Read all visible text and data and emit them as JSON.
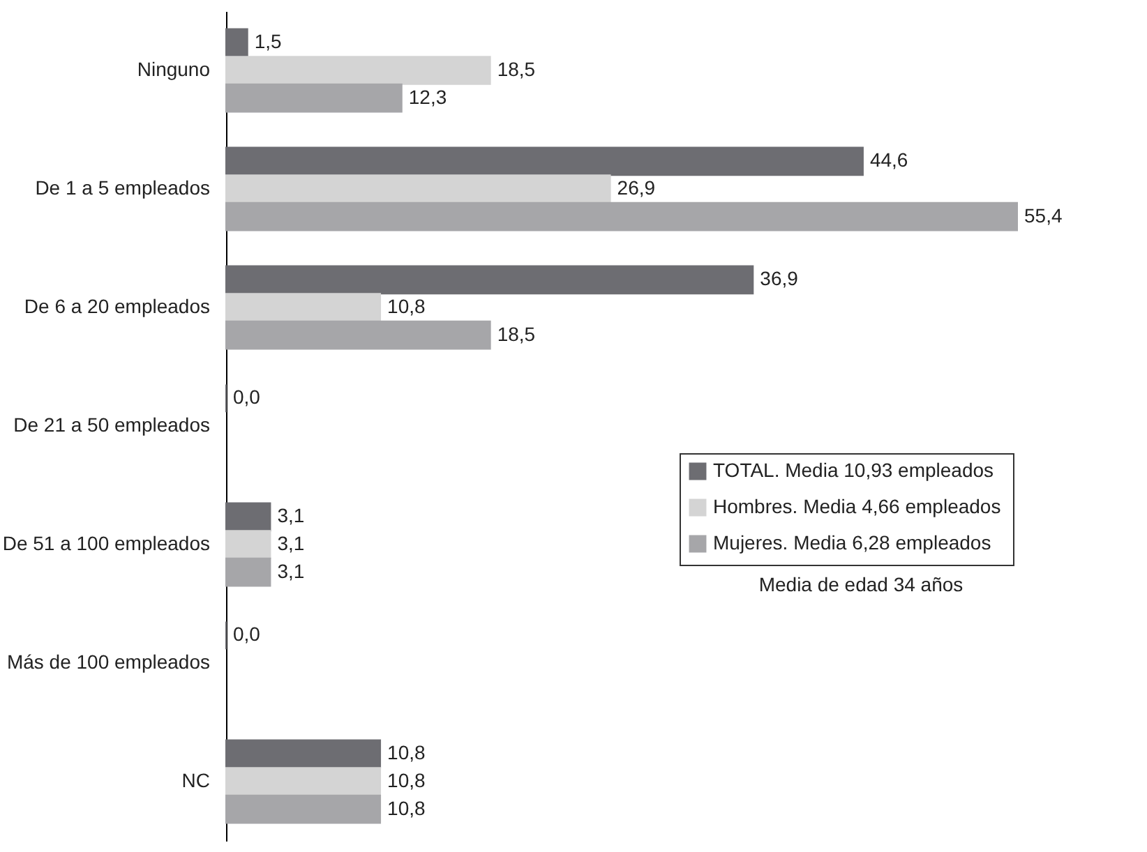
{
  "chart_data": {
    "type": "bar",
    "orientation": "horizontal",
    "legend": "right",
    "grid": false,
    "categories": [
      "Ninguno",
      "De 1 a 5 empleados",
      "De 6 a 20 empleados",
      "De 21 a 50 empleados",
      "De 51 a 100 empleados",
      "Más de 100  empleados",
      "NC"
    ],
    "series": [
      {
        "name": "TOTAL.   Media 10,93 empleados",
        "color": "#6d6d72",
        "values": [
          1.5,
          44.6,
          36.9,
          0.0,
          3.1,
          0.0,
          10.8
        ],
        "value_labels": [
          "1,5",
          "44,6",
          "36,9",
          "0,0",
          "3,1",
          "0,0",
          "10,8"
        ]
      },
      {
        "name": "Hombres. Media 4,66 empleados",
        "color": "#d4d4d4",
        "values": [
          18.5,
          26.9,
          10.8,
          null,
          3.1,
          null,
          10.8
        ],
        "value_labels": [
          "18,5",
          "26,9",
          "10,8",
          null,
          "3,1",
          null,
          "10,8"
        ]
      },
      {
        "name": "Mujeres.  Media 6,28 empleados",
        "color": "#a6a6a9",
        "values": [
          12.3,
          55.4,
          18.5,
          null,
          3.1,
          null,
          10.8
        ],
        "value_labels": [
          "12,3",
          "55,4",
          "18,5",
          null,
          "3,1",
          null,
          "10,8"
        ]
      }
    ],
    "annotations": [
      "Media de edad 34 años"
    ]
  }
}
